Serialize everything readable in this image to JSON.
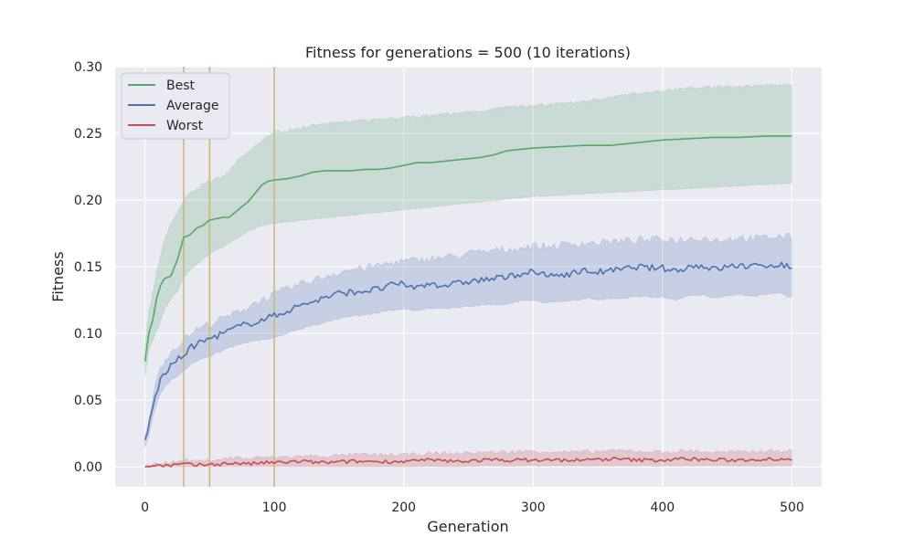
{
  "chart_data": {
    "type": "line",
    "title": "Fitness for generations = 500 (10 iterations)",
    "xlabel": "Generation",
    "ylabel": "Fitness",
    "xlim": [
      -23,
      523
    ],
    "ylim": [
      -0.015,
      0.3
    ],
    "x_ticks": [
      0,
      100,
      200,
      300,
      400,
      500
    ],
    "y_ticks": [
      0.0,
      0.05,
      0.1,
      0.15,
      0.2,
      0.25,
      0.3
    ],
    "y_tick_labels": [
      "0.00",
      "0.05",
      "0.10",
      "0.15",
      "0.20",
      "0.25",
      "0.30"
    ],
    "grid": true,
    "legend_position": "top-left",
    "vertical_lines": {
      "x": [
        30,
        50,
        100
      ],
      "color": "#ccb974"
    },
    "series": [
      {
        "name": "Best",
        "color": "#55a868",
        "x": [
          0,
          3,
          6,
          9,
          12,
          15,
          20,
          25,
          30,
          35,
          40,
          45,
          50,
          55,
          60,
          65,
          70,
          75,
          80,
          85,
          90,
          95,
          100,
          110,
          120,
          130,
          140,
          150,
          160,
          170,
          180,
          190,
          200,
          210,
          220,
          230,
          240,
          250,
          260,
          270,
          280,
          290,
          300,
          320,
          340,
          360,
          380,
          400,
          420,
          440,
          460,
          480,
          500
        ],
        "y": [
          0.079,
          0.1,
          0.11,
          0.126,
          0.136,
          0.141,
          0.143,
          0.155,
          0.172,
          0.174,
          0.179,
          0.181,
          0.185,
          0.186,
          0.187,
          0.187,
          0.191,
          0.195,
          0.199,
          0.205,
          0.211,
          0.214,
          0.215,
          0.216,
          0.218,
          0.221,
          0.222,
          0.222,
          0.222,
          0.223,
          0.223,
          0.224,
          0.226,
          0.228,
          0.228,
          0.229,
          0.23,
          0.231,
          0.232,
          0.234,
          0.237,
          0.238,
          0.239,
          0.24,
          0.241,
          0.241,
          0.243,
          0.245,
          0.246,
          0.247,
          0.247,
          0.248,
          0.248
        ],
        "upper": [
          0.092,
          0.115,
          0.13,
          0.145,
          0.157,
          0.17,
          0.182,
          0.19,
          0.2,
          0.205,
          0.208,
          0.212,
          0.214,
          0.216,
          0.218,
          0.222,
          0.228,
          0.232,
          0.236,
          0.24,
          0.244,
          0.248,
          0.251,
          0.252,
          0.254,
          0.256,
          0.257,
          0.258,
          0.259,
          0.26,
          0.26,
          0.261,
          0.262,
          0.263,
          0.263,
          0.264,
          0.265,
          0.266,
          0.267,
          0.268,
          0.27,
          0.27,
          0.271,
          0.272,
          0.274,
          0.277,
          0.28,
          0.282,
          0.284,
          0.285,
          0.285,
          0.286,
          0.286
        ],
        "lower": [
          0.068,
          0.088,
          0.095,
          0.102,
          0.11,
          0.118,
          0.126,
          0.132,
          0.142,
          0.148,
          0.152,
          0.156,
          0.16,
          0.163,
          0.165,
          0.168,
          0.171,
          0.174,
          0.177,
          0.179,
          0.181,
          0.182,
          0.183,
          0.184,
          0.185,
          0.186,
          0.187,
          0.188,
          0.189,
          0.19,
          0.191,
          0.192,
          0.193,
          0.194,
          0.195,
          0.196,
          0.197,
          0.198,
          0.199,
          0.2,
          0.201,
          0.202,
          0.203,
          0.204,
          0.205,
          0.206,
          0.207,
          0.208,
          0.209,
          0.21,
          0.211,
          0.212,
          0.213
        ]
      },
      {
        "name": "Average",
        "color": "#4c72b0",
        "x": [
          0,
          3,
          6,
          9,
          12,
          15,
          20,
          25,
          30,
          35,
          40,
          45,
          50,
          55,
          60,
          65,
          70,
          75,
          80,
          85,
          90,
          95,
          100,
          110,
          120,
          130,
          140,
          150,
          160,
          170,
          180,
          190,
          200,
          210,
          220,
          230,
          240,
          250,
          260,
          270,
          280,
          290,
          300,
          310,
          320,
          330,
          340,
          350,
          360,
          370,
          380,
          390,
          400,
          410,
          420,
          430,
          440,
          450,
          460,
          470,
          480,
          490,
          500
        ],
        "y": [
          0.019,
          0.03,
          0.045,
          0.056,
          0.065,
          0.07,
          0.075,
          0.08,
          0.084,
          0.089,
          0.092,
          0.094,
          0.096,
          0.098,
          0.1,
          0.102,
          0.104,
          0.106,
          0.107,
          0.109,
          0.11,
          0.112,
          0.113,
          0.117,
          0.121,
          0.124,
          0.127,
          0.13,
          0.131,
          0.132,
          0.133,
          0.136,
          0.137,
          0.134,
          0.138,
          0.136,
          0.137,
          0.139,
          0.14,
          0.141,
          0.142,
          0.145,
          0.146,
          0.143,
          0.144,
          0.145,
          0.147,
          0.146,
          0.147,
          0.148,
          0.15,
          0.149,
          0.149,
          0.147,
          0.15,
          0.151,
          0.148,
          0.15,
          0.151,
          0.15,
          0.151,
          0.152,
          0.149
        ],
        "upper": [
          0.022,
          0.036,
          0.052,
          0.064,
          0.074,
          0.08,
          0.086,
          0.091,
          0.095,
          0.1,
          0.103,
          0.105,
          0.107,
          0.109,
          0.111,
          0.113,
          0.115,
          0.118,
          0.12,
          0.123,
          0.125,
          0.127,
          0.129,
          0.133,
          0.137,
          0.14,
          0.143,
          0.146,
          0.148,
          0.149,
          0.151,
          0.153,
          0.154,
          0.155,
          0.156,
          0.157,
          0.158,
          0.16,
          0.161,
          0.162,
          0.163,
          0.164,
          0.166,
          0.165,
          0.166,
          0.167,
          0.168,
          0.168,
          0.169,
          0.169,
          0.17,
          0.17,
          0.171,
          0.17,
          0.171,
          0.172,
          0.17,
          0.171,
          0.172,
          0.171,
          0.172,
          0.173,
          0.172
        ],
        "lower": [
          0.016,
          0.024,
          0.038,
          0.048,
          0.056,
          0.061,
          0.065,
          0.069,
          0.073,
          0.077,
          0.08,
          0.082,
          0.084,
          0.086,
          0.088,
          0.09,
          0.092,
          0.093,
          0.094,
          0.095,
          0.096,
          0.097,
          0.098,
          0.101,
          0.104,
          0.107,
          0.109,
          0.112,
          0.113,
          0.115,
          0.116,
          0.118,
          0.119,
          0.118,
          0.12,
          0.119,
          0.12,
          0.121,
          0.122,
          0.122,
          0.123,
          0.125,
          0.126,
          0.124,
          0.125,
          0.125,
          0.127,
          0.126,
          0.127,
          0.127,
          0.129,
          0.128,
          0.128,
          0.126,
          0.129,
          0.13,
          0.127,
          0.129,
          0.13,
          0.129,
          0.13,
          0.131,
          0.128
        ]
      },
      {
        "name": "Worst",
        "color": "#c44e52",
        "x": [
          0,
          10,
          20,
          30,
          40,
          50,
          60,
          70,
          80,
          90,
          100,
          120,
          140,
          160,
          180,
          200,
          220,
          240,
          260,
          280,
          300,
          320,
          340,
          360,
          380,
          400,
          420,
          440,
          460,
          480,
          500
        ],
        "y": [
          0.0,
          0.001,
          0.001,
          0.002,
          0.001,
          0.002,
          0.002,
          0.003,
          0.002,
          0.003,
          0.003,
          0.004,
          0.003,
          0.004,
          0.004,
          0.004,
          0.005,
          0.004,
          0.005,
          0.005,
          0.005,
          0.005,
          0.005,
          0.006,
          0.005,
          0.005,
          0.006,
          0.005,
          0.005,
          0.006,
          0.006
        ],
        "upper": [
          0.001,
          0.003,
          0.003,
          0.005,
          0.004,
          0.005,
          0.006,
          0.007,
          0.006,
          0.007,
          0.007,
          0.008,
          0.008,
          0.009,
          0.009,
          0.009,
          0.01,
          0.01,
          0.011,
          0.011,
          0.012,
          0.011,
          0.011,
          0.012,
          0.012,
          0.011,
          0.012,
          0.011,
          0.011,
          0.012,
          0.012
        ],
        "lower": [
          0.0,
          0.0,
          0.0,
          0.0,
          0.0,
          0.0,
          0.0,
          0.0,
          0.0,
          0.0,
          0.0,
          0.0,
          0.0,
          0.0,
          0.0,
          0.0,
          0.001,
          0.0,
          0.001,
          0.001,
          0.001,
          0.001,
          0.001,
          0.001,
          0.001,
          0.001,
          0.001,
          0.001,
          0.001,
          0.001,
          0.001
        ]
      }
    ]
  }
}
